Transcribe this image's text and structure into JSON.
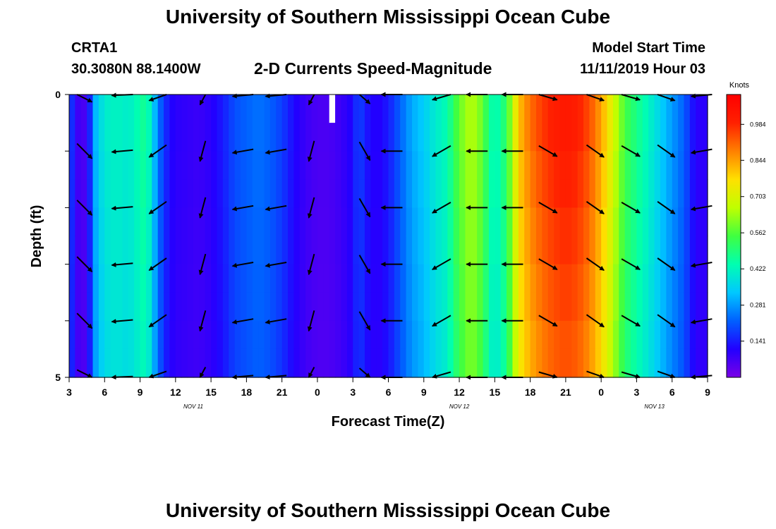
{
  "header": {
    "title": "University of Southern Mississippi Ocean Cube",
    "station": "CRTA1",
    "coords": "30.3080N 88.1400W",
    "subtitle": "2-D Currents Speed-Magnitude",
    "model_label": "Model Start Time",
    "model_time": "11/11/2019 Hour 03"
  },
  "footer": {
    "title": "University of Southern Mississippi Ocean Cube"
  },
  "colors": {
    "palette": [
      "#7a00e6",
      "#2200ff",
      "#0060ff",
      "#00c8ff",
      "#00ffb0",
      "#40ff40",
      "#c0ff00",
      "#ffe000",
      "#ff8000",
      "#ff2000",
      "#ff0000"
    ],
    "arrow": "#000000",
    "missing": "#ffffff"
  },
  "chart_data": {
    "type": "heatmap",
    "title": "2-D Currents Speed-Magnitude",
    "xlabel": "Forecast Time(Z)",
    "ylabel": "Depth (ft)",
    "x_ticks": [
      "3",
      "6",
      "9",
      "12",
      "15",
      "18",
      "21",
      "0",
      "3",
      "6",
      "9",
      "12",
      "15",
      "18",
      "21",
      "0",
      "3",
      "6",
      "9"
    ],
    "x_range": [
      3,
      57
    ],
    "date_labels": [
      {
        "text": "NOV 11",
        "hour": 13.5
      },
      {
        "text": "NOV 12",
        "hour": 36.0
      },
      {
        "text": "NOV 13",
        "hour": 52.5
      }
    ],
    "y_ticks": [
      "0",
      "5"
    ],
    "ylim": [
      0,
      5
    ],
    "depths": [
      0,
      1,
      2,
      3,
      4,
      5
    ],
    "colorbar": {
      "title": "Knots",
      "min": 0.0,
      "max": 1.1,
      "labels": [
        "0.984",
        "0.844",
        "0.703",
        "0.562",
        "0.422",
        "0.281",
        "0.141"
      ]
    },
    "speed_profile": {
      "hours": [
        3,
        3.5,
        4,
        4.6,
        5,
        5.5,
        6,
        7,
        8,
        9,
        9.5,
        10,
        10.5,
        11,
        11.5,
        12,
        13,
        14,
        15,
        16,
        17,
        18,
        19,
        20,
        21,
        22,
        23,
        24,
        25,
        26,
        27,
        27.5,
        28,
        29,
        30,
        31,
        32,
        33,
        34,
        35,
        35.5,
        36,
        36.5,
        37,
        37.5,
        38,
        38.5,
        39,
        40,
        41,
        42,
        43,
        44,
        45,
        46,
        47,
        48,
        49,
        50,
        51,
        52,
        53,
        54,
        55,
        56,
        57
      ],
      "speed": [
        0.22,
        0.1,
        0.05,
        0.08,
        0.28,
        0.35,
        0.4,
        0.42,
        0.4,
        0.45,
        0.48,
        0.38,
        0.25,
        0.18,
        0.12,
        0.1,
        0.09,
        0.08,
        0.1,
        0.14,
        0.2,
        0.22,
        0.24,
        0.22,
        0.18,
        0.12,
        0.08,
        0.06,
        0.06,
        0.08,
        0.12,
        0.2,
        0.14,
        0.1,
        0.14,
        0.22,
        0.3,
        0.34,
        0.4,
        0.44,
        0.52,
        0.58,
        0.62,
        0.66,
        0.62,
        0.58,
        0.48,
        0.42,
        0.52,
        0.8,
        0.9,
        0.96,
        1.0,
        1.02,
        1.0,
        0.94,
        0.84,
        0.7,
        0.55,
        0.48,
        0.42,
        0.35,
        0.28,
        0.22,
        0.1,
        0.1
      ]
    },
    "depth_factor": [
      1.0,
      0.98,
      0.96,
      0.94,
      0.92,
      0.9
    ],
    "missing_cells": [
      {
        "hour": 25.0,
        "depth_from": 0,
        "depth_to": 0.5
      }
    ],
    "vectors": {
      "hours": [
        4.3,
        7.5,
        10.5,
        14.3,
        17.7,
        20.5,
        23.5,
        28,
        30.3,
        34.5,
        37.5,
        40.5,
        43.5,
        47.5,
        50.5,
        53.5,
        56.5
      ],
      "directions_deg": [
        315,
        185,
        215,
        255,
        190,
        190,
        255,
        300,
        180,
        210,
        180,
        180,
        330,
        325,
        330,
        325,
        190
      ],
      "depths": [
        0,
        1,
        2,
        3,
        4,
        5
      ]
    }
  }
}
